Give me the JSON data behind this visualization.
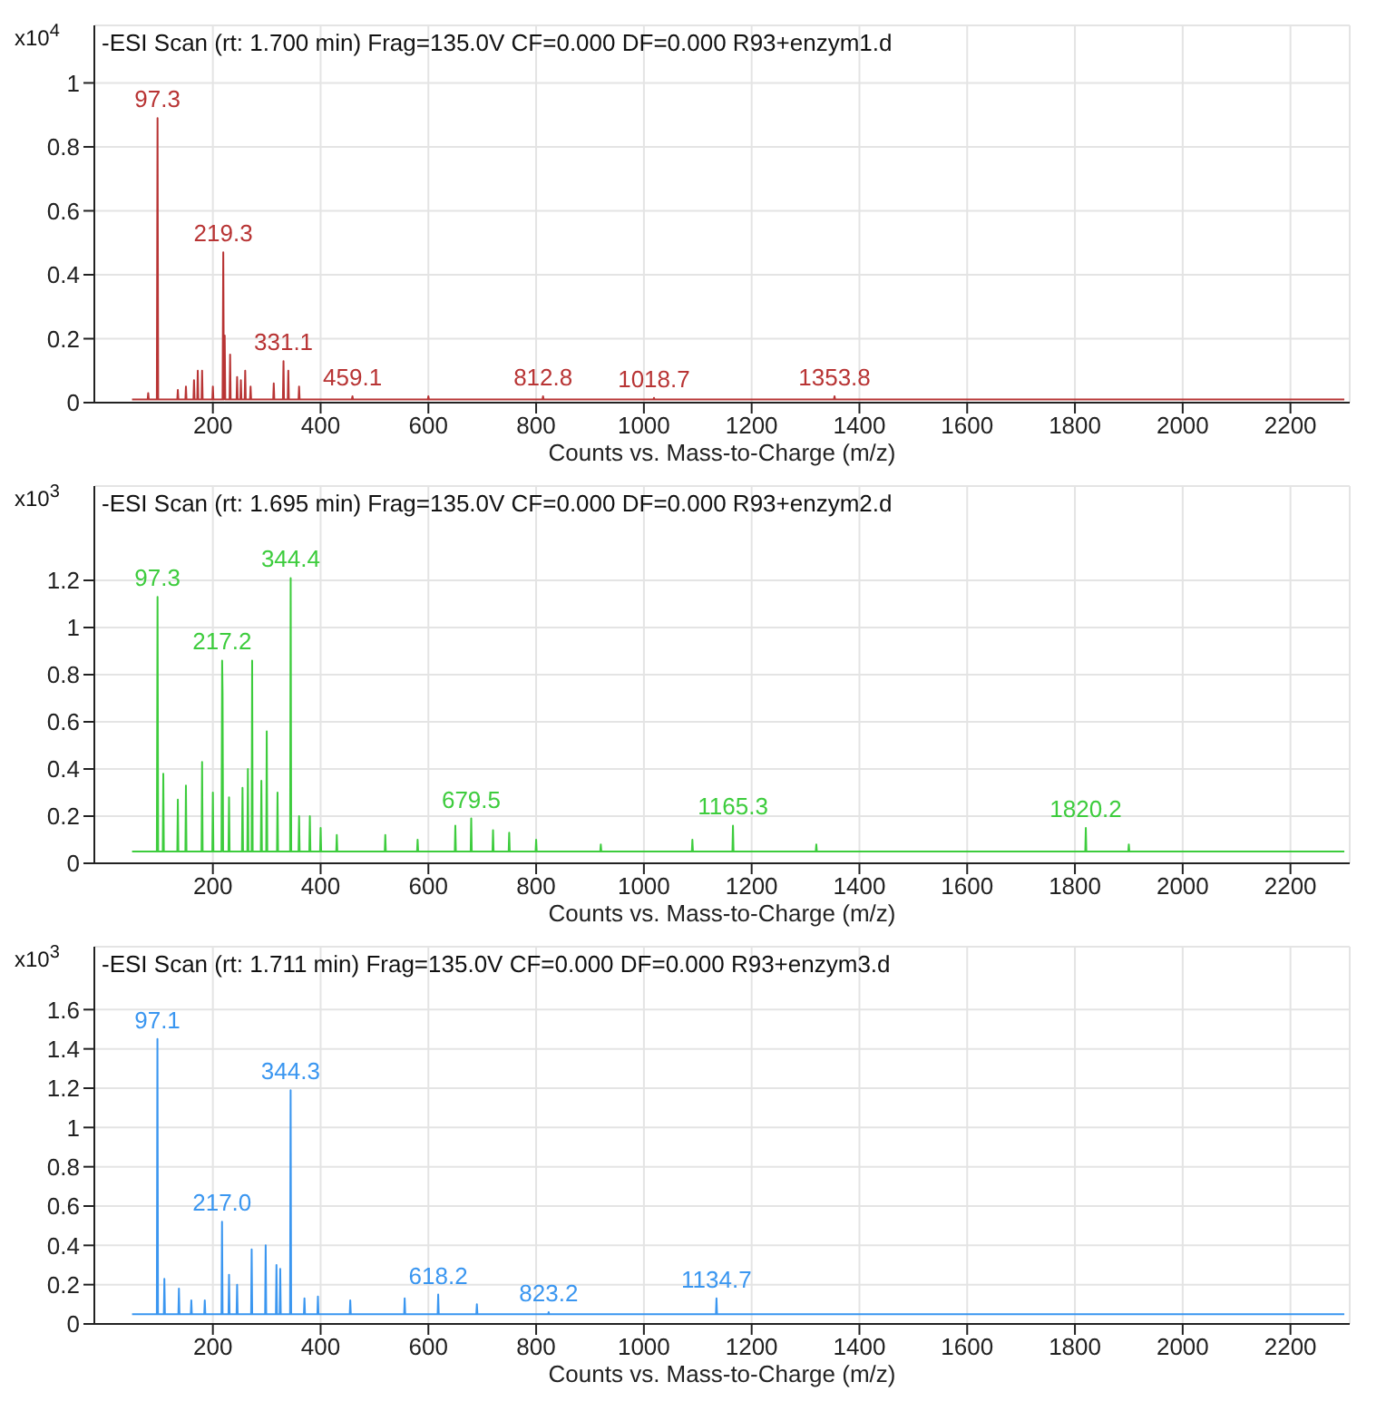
{
  "chart_data": [
    {
      "type": "line",
      "title": "-ESI Scan (rt: 1.700 min) Frag=135.0V CF=0.000 DF=0.000 R93+enzym1.d",
      "xlabel": "Counts vs. Mass-to-Charge (m/z)",
      "ylabel": "x10$^{4}$",
      "xlim": [
        -20,
        2310
      ],
      "xticks": [
        200,
        400,
        600,
        800,
        1000,
        1200,
        1400,
        1600,
        1800,
        2000,
        2200
      ],
      "ylim": [
        0,
        1.18
      ],
      "yticks": [
        0,
        0.2,
        0.4,
        0.6,
        0.8,
        1
      ],
      "grid": true,
      "x": [
        50,
        79,
        80,
        81,
        96,
        97.3,
        98.5,
        134,
        135,
        136,
        149,
        150,
        151,
        164,
        165,
        166,
        171,
        172,
        173,
        179,
        180,
        181,
        199,
        200,
        201,
        218,
        219.3,
        220.5,
        222,
        223,
        231,
        232,
        233,
        244,
        245,
        246,
        251,
        252,
        253,
        259,
        260,
        261,
        269,
        270,
        271,
        312,
        313,
        314,
        330,
        331.1,
        332,
        339,
        340,
        341,
        359,
        360,
        361,
        458,
        459.1,
        460,
        599,
        600,
        601,
        811.8,
        812.8,
        813.8,
        1017.7,
        1018.7,
        1019.7,
        1352.8,
        1353.8,
        1354.8,
        2300
      ],
      "series": [
        {
          "color": "#b83434",
          "values": [
            0.01,
            0.01,
            0.03,
            0.01,
            0.01,
            0.89,
            0.01,
            0.01,
            0.04,
            0.01,
            0.01,
            0.05,
            0.01,
            0.01,
            0.07,
            0.01,
            0.01,
            0.1,
            0.01,
            0.01,
            0.1,
            0.01,
            0.01,
            0.05,
            0.01,
            0.01,
            0.47,
            0.01,
            0.21,
            0.01,
            0.01,
            0.15,
            0.01,
            0.01,
            0.08,
            0.01,
            0.01,
            0.07,
            0.01,
            0.01,
            0.1,
            0.01,
            0.01,
            0.05,
            0.01,
            0.01,
            0.06,
            0.01,
            0.01,
            0.13,
            0.01,
            0.01,
            0.1,
            0.01,
            0.01,
            0.05,
            0.01,
            0.01,
            0.02,
            0.01,
            0.01,
            0.02,
            0.01,
            0.01,
            0.02,
            0.01,
            0.01,
            0.015,
            0.01,
            0.01,
            0.02,
            0.01,
            0.01
          ]
        }
      ],
      "annotations": [
        {
          "text": "97.3",
          "x": 97.3,
          "y": 0.89
        },
        {
          "text": "219.3",
          "x": 219.3,
          "y": 0.47
        },
        {
          "text": "331.1",
          "x": 331.1,
          "y": 0.13
        },
        {
          "text": "459.1",
          "x": 459.1,
          "y": 0.02
        },
        {
          "text": "812.8",
          "x": 812.8,
          "y": 0.02
        },
        {
          "text": "1018.7",
          "x": 1018.7,
          "y": 0.015
        },
        {
          "text": "1353.8",
          "x": 1353.8,
          "y": 0.02
        }
      ]
    },
    {
      "type": "line",
      "title": "-ESI Scan (rt: 1.695 min) Frag=135.0V CF=0.000 DF=0.000 R93+enzym2.d",
      "xlabel": "Counts vs. Mass-to-Charge (m/z)",
      "ylabel": "x10$^{3}$",
      "xlim": [
        -20,
        2310
      ],
      "xticks": [
        200,
        400,
        600,
        800,
        1000,
        1200,
        1400,
        1600,
        1800,
        2000,
        2200
      ],
      "ylim": [
        0,
        1.6
      ],
      "yticks": [
        0,
        0.2,
        0.4,
        0.6,
        0.8,
        1,
        1.2
      ],
      "grid": true,
      "x": [
        50,
        96,
        97.3,
        98.5,
        107,
        108,
        109,
        134,
        135,
        136,
        149,
        150,
        151,
        179,
        180,
        181,
        199,
        200,
        201,
        216,
        217.2,
        218,
        219,
        229,
        230,
        231,
        254,
        255,
        256,
        264,
        265,
        266,
        271.9,
        272.9,
        273.9,
        289,
        290,
        291,
        299,
        300,
        301,
        319,
        320,
        321,
        343.4,
        344.4,
        345.4,
        359,
        360,
        361,
        379,
        380,
        381,
        399,
        400,
        401,
        429,
        430,
        431,
        519,
        520,
        521,
        579,
        580,
        581,
        649,
        650,
        651,
        678.5,
        679.5,
        680.5,
        719,
        720,
        721,
        749,
        750,
        751,
        799,
        800,
        801,
        919,
        920,
        921,
        1089,
        1090,
        1091,
        1164.3,
        1165.3,
        1166.3,
        1319,
        1320,
        1321,
        1819.2,
        1820.2,
        1821.2,
        1899,
        1900,
        1901,
        2300
      ],
      "series": [
        {
          "color": "#3dcc3d",
          "values": [
            0.05,
            0.05,
            1.13,
            0.05,
            0.05,
            0.38,
            0.05,
            0.05,
            0.27,
            0.05,
            0.05,
            0.33,
            0.05,
            0.05,
            0.43,
            0.05,
            0.05,
            0.3,
            0.05,
            0.05,
            0.86,
            0.72,
            0.05,
            0.05,
            0.28,
            0.05,
            0.05,
            0.32,
            0.05,
            0.05,
            0.4,
            0.05,
            0.05,
            0.86,
            0.05,
            0.05,
            0.35,
            0.05,
            0.05,
            0.56,
            0.05,
            0.05,
            0.3,
            0.05,
            0.05,
            1.21,
            0.05,
            0.05,
            0.2,
            0.05,
            0.05,
            0.2,
            0.05,
            0.05,
            0.15,
            0.05,
            0.05,
            0.12,
            0.05,
            0.05,
            0.12,
            0.05,
            0.05,
            0.1,
            0.05,
            0.05,
            0.16,
            0.05,
            0.05,
            0.19,
            0.05,
            0.05,
            0.14,
            0.05,
            0.05,
            0.13,
            0.05,
            0.05,
            0.1,
            0.05,
            0.05,
            0.08,
            0.05,
            0.05,
            0.1,
            0.05,
            0.05,
            0.16,
            0.05,
            0.05,
            0.08,
            0.05,
            0.05,
            0.15,
            0.05,
            0.05,
            0.08,
            0.05,
            0.05
          ]
        }
      ],
      "annotations": [
        {
          "text": "97.3",
          "x": 97.3,
          "y": 1.13
        },
        {
          "text": "217.2",
          "x": 217.2,
          "y": 0.86
        },
        {
          "text": "344.4",
          "x": 344.4,
          "y": 1.21
        },
        {
          "text": "679.5",
          "x": 679.5,
          "y": 0.19
        },
        {
          "text": "1165.3",
          "x": 1165.3,
          "y": 0.16
        },
        {
          "text": "1820.2",
          "x": 1820.2,
          "y": 0.15
        }
      ]
    },
    {
      "type": "line",
      "title": "-ESI Scan (rt: 1.711 min) Frag=135.0V CF=0.000 DF=0.000 R93+enzym3.d",
      "xlabel": "Counts vs. Mass-to-Charge (m/z)",
      "ylabel": "x10$^{3}$",
      "xlim": [
        -20,
        2310
      ],
      "xticks": [
        200,
        400,
        600,
        800,
        1000,
        1200,
        1400,
        1600,
        1800,
        2000,
        2200
      ],
      "ylim": [
        0,
        1.92
      ],
      "yticks": [
        0,
        0.2,
        0.4,
        0.6,
        0.8,
        1,
        1.2,
        1.4,
        1.6
      ],
      "grid": true,
      "x": [
        50,
        96,
        97.1,
        98.2,
        109,
        110,
        111,
        136,
        137,
        138,
        159,
        160,
        161,
        184,
        185,
        186,
        216,
        217,
        218,
        229,
        230,
        231,
        244,
        245,
        246,
        271,
        272,
        273,
        297,
        298,
        299,
        317,
        318,
        319,
        324,
        325,
        326,
        343.3,
        344.3,
        345.3,
        369,
        370,
        371,
        394,
        395,
        396,
        454,
        455,
        456,
        555,
        556,
        557,
        617.2,
        618.2,
        619.2,
        689,
        690,
        691,
        822.2,
        823.2,
        824.2,
        1133.7,
        1134.7,
        1135.7,
        2300
      ],
      "series": [
        {
          "color": "#3a96f0",
          "values": [
            0.05,
            0.05,
            1.45,
            0.05,
            0.05,
            0.23,
            0.05,
            0.05,
            0.18,
            0.05,
            0.05,
            0.12,
            0.05,
            0.05,
            0.12,
            0.05,
            0.05,
            0.52,
            0.05,
            0.05,
            0.25,
            0.05,
            0.05,
            0.2,
            0.05,
            0.05,
            0.38,
            0.05,
            0.05,
            0.4,
            0.05,
            0.05,
            0.3,
            0.05,
            0.05,
            0.28,
            0.05,
            0.05,
            1.19,
            0.05,
            0.05,
            0.13,
            0.05,
            0.05,
            0.14,
            0.05,
            0.05,
            0.12,
            0.05,
            0.05,
            0.13,
            0.05,
            0.05,
            0.15,
            0.05,
            0.05,
            0.1,
            0.05,
            0.05,
            0.06,
            0.05,
            0.05,
            0.13,
            0.05,
            0.05
          ]
        }
      ],
      "annotations": [
        {
          "text": "97.1",
          "x": 97.1,
          "y": 1.45
        },
        {
          "text": "217.0",
          "x": 217,
          "y": 0.52
        },
        {
          "text": "344.3",
          "x": 344.3,
          "y": 1.19
        },
        {
          "text": "618.2",
          "x": 618.2,
          "y": 0.15
        },
        {
          "text": "823.2",
          "x": 823.2,
          "y": 0.06
        },
        {
          "text": "1134.7",
          "x": 1134.7,
          "y": 0.13
        }
      ]
    }
  ]
}
